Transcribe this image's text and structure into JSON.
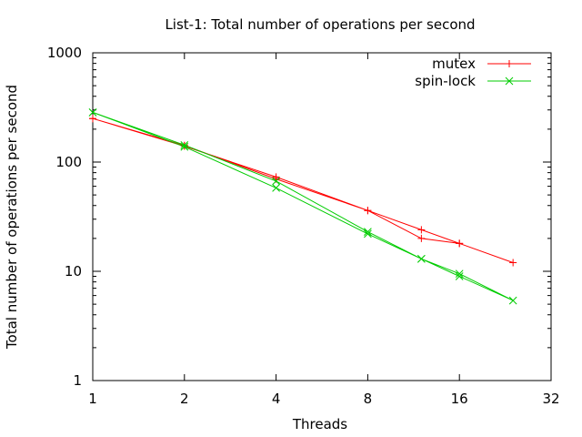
{
  "chart_data": {
    "type": "line",
    "title": "List-1: Total number of operations per second",
    "xlabel": "Threads",
    "ylabel": "Total number of operations per second",
    "x_scale": "log2",
    "y_scale": "log10",
    "xlim": [
      1,
      32
    ],
    "ylim": [
      1,
      1000
    ],
    "x_ticks": [
      1,
      2,
      4,
      8,
      16,
      32
    ],
    "x_tick_labels": [
      "1",
      "2",
      "4",
      "8",
      "16",
      "32"
    ],
    "y_ticks": [
      1,
      10,
      100,
      1000
    ],
    "y_tick_labels": [
      "1",
      "10",
      "100",
      "1000"
    ],
    "grid": false,
    "legend_position": "top-right",
    "series": [
      {
        "name": "mutex",
        "color": "#ff0000",
        "marker": "plus",
        "x": [
          1,
          2,
          4,
          8,
          12,
          16,
          24,
          16,
          12,
          8,
          4,
          2,
          1
        ],
        "y": [
          250,
          140,
          73,
          36,
          20,
          18,
          12,
          18,
          24,
          36,
          70,
          142,
          250
        ]
      },
      {
        "name": "spin-lock",
        "color": "#00cc00",
        "marker": "cross",
        "x": [
          1,
          2,
          4,
          8,
          12,
          16,
          24,
          16,
          12,
          8,
          4,
          2,
          1
        ],
        "y": [
          285,
          143,
          67,
          23,
          13,
          9.5,
          5.4,
          9,
          13,
          22,
          58,
          138,
          285
        ]
      }
    ]
  }
}
